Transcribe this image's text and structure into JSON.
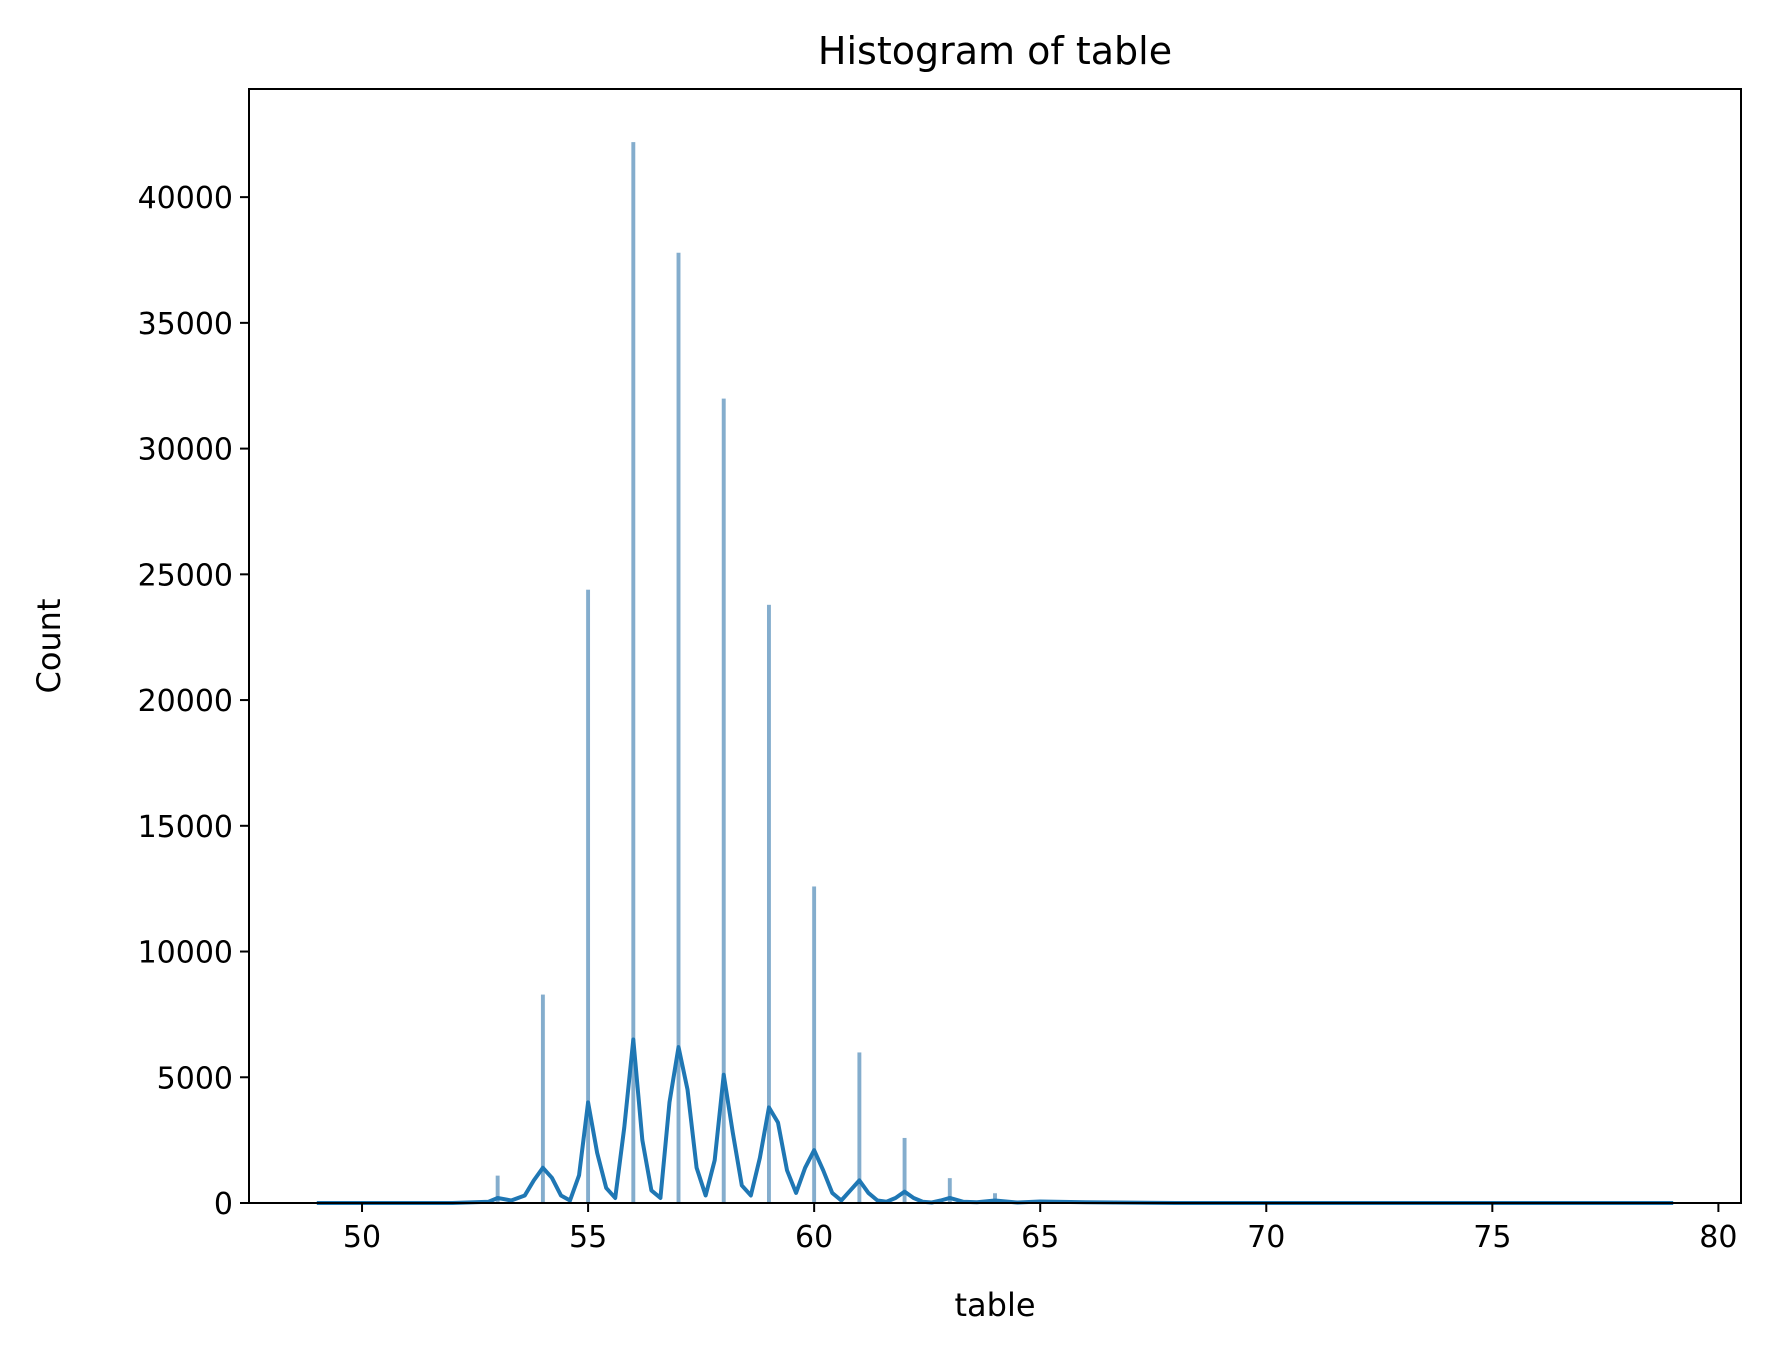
{
  "chart_data": {
    "type": "bar",
    "title": "Histogram of table",
    "xlabel": "table",
    "ylabel": "Count",
    "xlim": [
      47.5,
      80.5
    ],
    "ylim": [
      0,
      44300
    ],
    "xticks": [
      50,
      55,
      60,
      65,
      70,
      75,
      80
    ],
    "xtick_labels": [
      "50",
      "55",
      "60",
      "65",
      "70",
      "75",
      "80"
    ],
    "yticks": [
      0,
      5000,
      10000,
      15000,
      20000,
      25000,
      30000,
      35000,
      40000
    ],
    "ytick_labels": [
      "0",
      "5000",
      "10000",
      "15000",
      "20000",
      "25000",
      "30000",
      "35000",
      "40000"
    ],
    "grid": false,
    "legend": "none",
    "bar_color": "#6f9fc4",
    "line_color": "#1f77b4",
    "bin_width": 0.1,
    "bins": [
      {
        "x": 53,
        "count": 1100
      },
      {
        "x": 54,
        "count": 8300
      },
      {
        "x": 55,
        "count": 24400
      },
      {
        "x": 56,
        "count": 42200
      },
      {
        "x": 57,
        "count": 37800
      },
      {
        "x": 58,
        "count": 32000
      },
      {
        "x": 59,
        "count": 23800
      },
      {
        "x": 60,
        "count": 12600
      },
      {
        "x": 61,
        "count": 6000
      },
      {
        "x": 62,
        "count": 2600
      },
      {
        "x": 63,
        "count": 1000
      },
      {
        "x": 64,
        "count": 400
      }
    ],
    "kde": {
      "x": [
        49,
        52,
        52.8,
        53,
        53.3,
        53.6,
        53.8,
        54,
        54.2,
        54.4,
        54.6,
        54.8,
        55,
        55.2,
        55.4,
        55.6,
        55.8,
        56,
        56.2,
        56.4,
        56.6,
        56.8,
        57,
        57.2,
        57.4,
        57.6,
        57.8,
        58,
        58.2,
        58.4,
        58.6,
        58.8,
        59,
        59.2,
        59.4,
        59.6,
        59.8,
        60,
        60.2,
        60.4,
        60.6,
        60.8,
        61,
        61.2,
        61.4,
        61.6,
        61.8,
        62,
        62.2,
        62.4,
        62.6,
        62.8,
        63,
        63.3,
        63.6,
        64,
        64.5,
        65,
        66,
        68,
        79
      ],
      "y": [
        0,
        0,
        50,
        200,
        100,
        300,
        900,
        1400,
        1000,
        300,
        100,
        1100,
        4000,
        2000,
        600,
        200,
        3000,
        6500,
        2500,
        500,
        200,
        4000,
        6200,
        4500,
        1400,
        300,
        1700,
        5100,
        2800,
        700,
        300,
        1800,
        3800,
        3200,
        1300,
        400,
        1400,
        2100,
        1300,
        400,
        100,
        500,
        900,
        400,
        100,
        50,
        200,
        450,
        200,
        50,
        20,
        100,
        200,
        50,
        30,
        100,
        20,
        60,
        30,
        0,
        0
      ]
    }
  }
}
